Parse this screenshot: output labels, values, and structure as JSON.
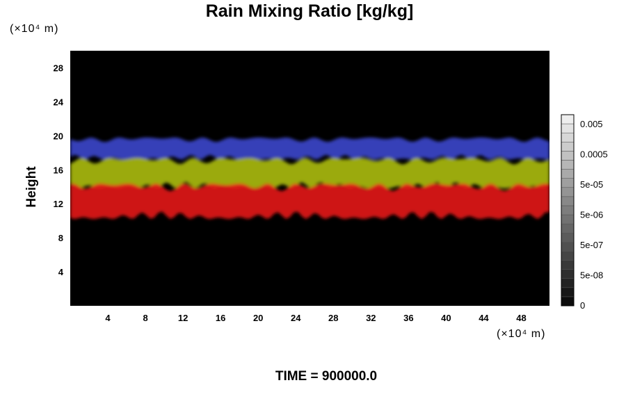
{
  "chart_data": {
    "type": "heatmap",
    "title": "Rain Mixing Ratio [kg/kg]",
    "ylabel": "Height",
    "y_scale_note": "(×10⁴ m)",
    "x_scale_note": "(×10⁴ m)",
    "footer": "TIME = 900000.0",
    "x_ticks": [
      4,
      8,
      12,
      16,
      20,
      24,
      28,
      32,
      36,
      40,
      44,
      48
    ],
    "y_ticks": [
      4,
      8,
      12,
      16,
      20,
      24,
      28
    ],
    "xlim": [
      0,
      51
    ],
    "ylim": [
      0,
      30
    ],
    "background_color": "#000000",
    "layers": [
      {
        "color": "#3a44c8",
        "y_range": [
          17.2,
          19.8
        ]
      },
      {
        "color": "#a8b812",
        "y_range": [
          13.8,
          17.4
        ]
      },
      {
        "color": "#e01818",
        "y_range": [
          10.2,
          14.4
        ]
      }
    ],
    "colorbar": {
      "labels": [
        "0.005",
        "0.0005",
        "5e-05",
        "5e-06",
        "5e-07",
        "5e-08",
        "0"
      ],
      "levels": 21
    }
  }
}
